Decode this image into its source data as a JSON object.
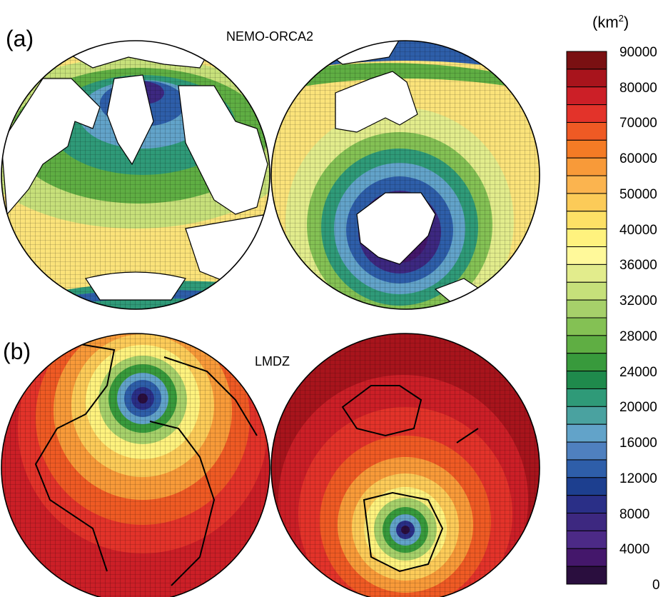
{
  "panels": [
    {
      "label": "(a)",
      "model": "NEMO-ORCA2"
    },
    {
      "label": "(b)",
      "model": "LMDZ"
    }
  ],
  "colorbar": {
    "unit_base": "(km",
    "unit_sup": "2",
    "unit_close": ")",
    "ticks": [
      "90000",
      "80000",
      "70000",
      "60000",
      "50000",
      "40000",
      "36000",
      "32000",
      "28000",
      "24000",
      "20000",
      "16000",
      "12000",
      "8000",
      "4000",
      "0"
    ],
    "colors_top_to_bottom": [
      "#7a1012",
      "#a8141c",
      "#cc1f27",
      "#e3332a",
      "#ef5a24",
      "#f47b25",
      "#f89a39",
      "#fbb44f",
      "#fccb58",
      "#fde066",
      "#fff27e",
      "#fff99a",
      "#e2ec8c",
      "#c6e07a",
      "#a6d06a",
      "#84c154",
      "#5fae43",
      "#389a3c",
      "#1f8a4c",
      "#2f9a78",
      "#4aa2a0",
      "#62a3c9",
      "#4f80bf",
      "#2e5ea9",
      "#1d3f8f",
      "#2a2f87",
      "#3d2880",
      "#4c2a86",
      "#44176b",
      "#2a0e3e"
    ]
  }
}
